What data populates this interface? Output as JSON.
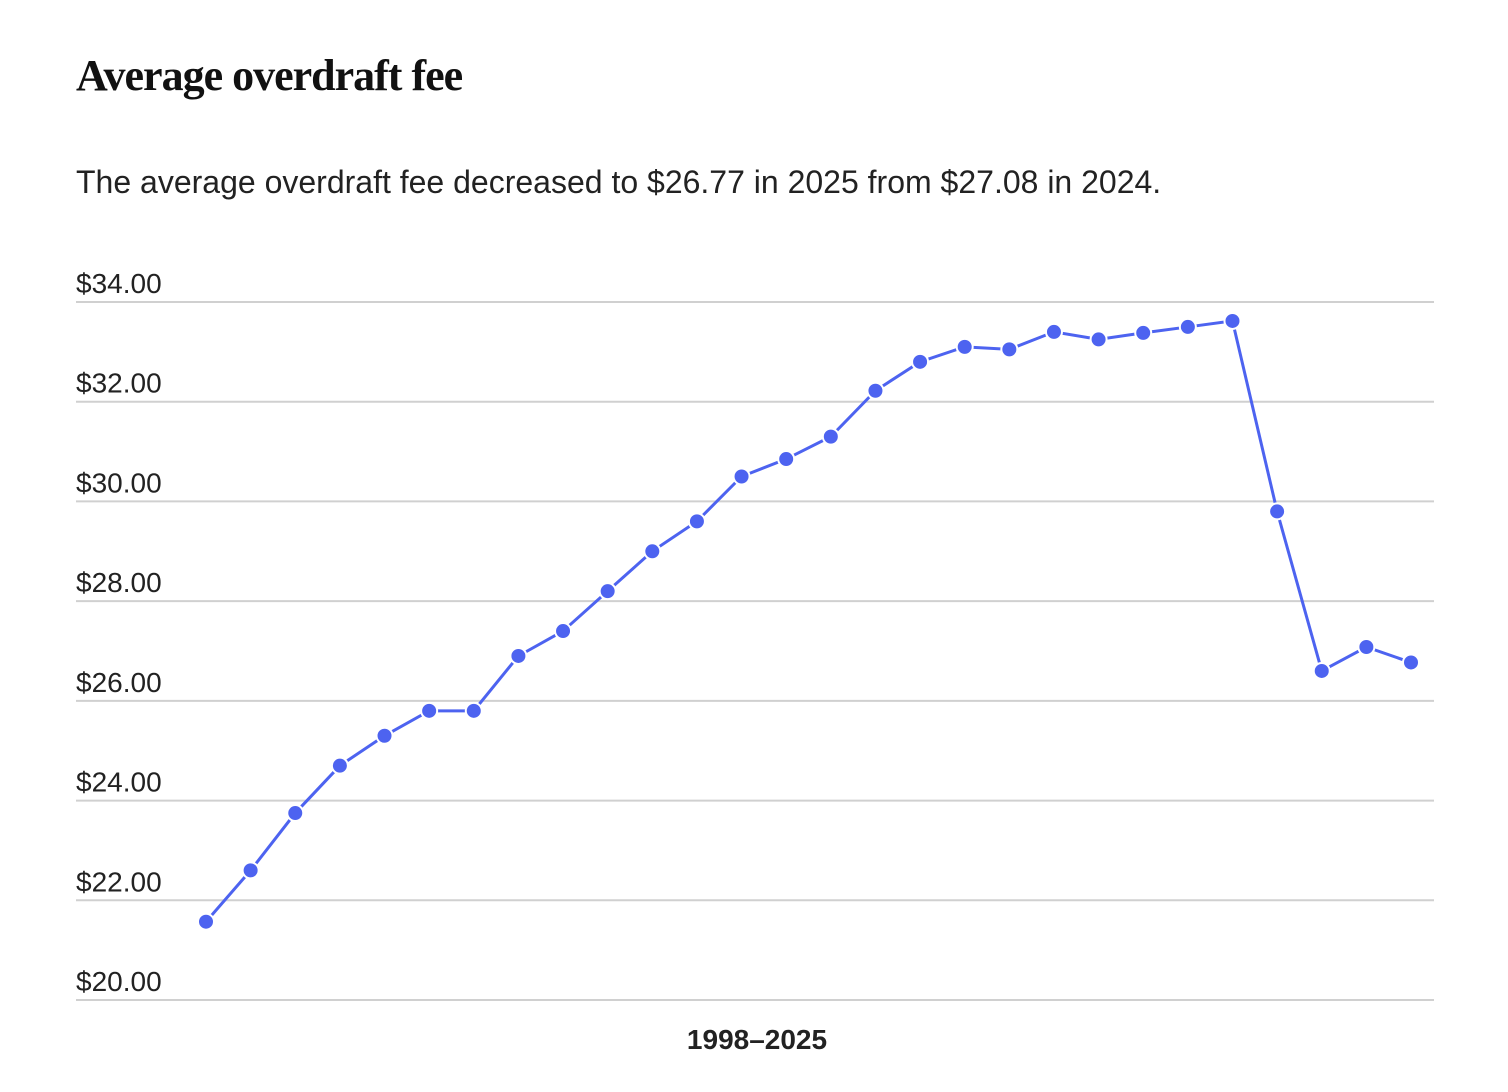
{
  "chart_data": {
    "type": "line",
    "title": "Average overdraft fee",
    "subtitle": "The average overdraft fee decreased to $26.77 in 2025 from $27.08 in 2024.",
    "x_label": "1998–2025",
    "categories": [
      null,
      null,
      null,
      null,
      null,
      null,
      null,
      null,
      null,
      null,
      null,
      null,
      null,
      null,
      null,
      null,
      null,
      null,
      null,
      null,
      null,
      null,
      null,
      null,
      null,
      null,
      null,
      null
    ],
    "values": [
      21.57,
      22.6,
      23.75,
      24.7,
      25.3,
      25.8,
      25.8,
      26.9,
      27.4,
      28.2,
      29.0,
      29.6,
      30.5,
      30.85,
      31.3,
      32.22,
      32.8,
      33.1,
      33.05,
      33.4,
      33.25,
      33.38,
      33.5,
      33.62,
      29.8,
      26.6,
      27.08,
      26.77
    ],
    "color": "#4d63f0",
    "ylim": [
      20,
      34
    ],
    "yticks": [
      {
        "value": 20,
        "label": "$20.00"
      },
      {
        "value": 22,
        "label": "$22.00"
      },
      {
        "value": 24,
        "label": "$24.00"
      },
      {
        "value": 26,
        "label": "$26.00"
      },
      {
        "value": 28,
        "label": "$28.00"
      },
      {
        "value": 30,
        "label": "$30.00"
      },
      {
        "value": 32,
        "label": "$32.00"
      },
      {
        "value": 34,
        "label": "$34.00"
      }
    ],
    "grid": true
  }
}
